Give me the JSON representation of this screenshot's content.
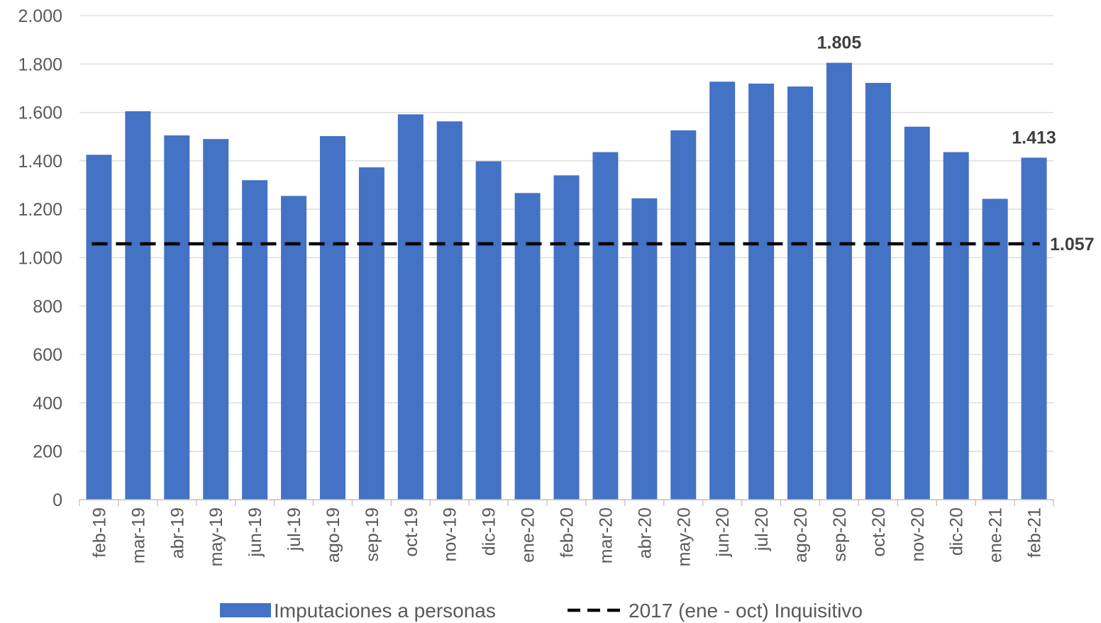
{
  "chart_data": {
    "type": "bar",
    "categories": [
      "feb-19",
      "mar-19",
      "abr-19",
      "may-19",
      "jun-19",
      "jul-19",
      "ago-19",
      "sep-19",
      "oct-19",
      "nov-19",
      "dic-19",
      "ene-20",
      "feb-20",
      "mar-20",
      "abr-20",
      "may-20",
      "jun-20",
      "jul-20",
      "ago-20",
      "sep-20",
      "oct-20",
      "nov-20",
      "dic-20",
      "ene-21",
      "feb-21"
    ],
    "series": [
      {
        "name": "Imputaciones a personas",
        "type": "bar",
        "color": "#4472C4",
        "values": [
          1425,
          1605,
          1505,
          1490,
          1320,
          1255,
          1502,
          1373,
          1592,
          1563,
          1398,
          1267,
          1340,
          1436,
          1245,
          1526,
          1727,
          1719,
          1707,
          1805,
          1722,
          1541,
          1436,
          1243,
          1413
        ]
      },
      {
        "name": "2017 (ene - oct) Inquisitivo",
        "type": "line",
        "style": "dashed",
        "color": "#000000",
        "value": 1057
      }
    ],
    "data_labels": [
      {
        "category": "sep-20",
        "text": "1.805"
      },
      {
        "category": "feb-21",
        "text": "1.413"
      },
      {
        "series": "2017 (ene - oct) Inquisitivo",
        "text": "1.057"
      }
    ],
    "ylim": [
      0,
      2000
    ],
    "yticks": [
      0,
      200,
      400,
      600,
      800,
      1000,
      1200,
      1400,
      1600,
      1800,
      2000
    ],
    "ytick_labels": [
      "0",
      "200",
      "400",
      "600",
      "800",
      "1.000",
      "1.200",
      "1.400",
      "1.600",
      "1.800",
      "2.000"
    ],
    "grid": true,
    "legend": "bottom"
  }
}
